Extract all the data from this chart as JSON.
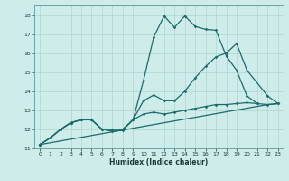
{
  "xlabel": "Humidex (Indice chaleur)",
  "bg_color": "#ceecea",
  "grid_color": "#aed4d0",
  "line_color": "#1a6b6b",
  "xlim": [
    -0.5,
    23.5
  ],
  "ylim": [
    11.0,
    18.5
  ],
  "yticks": [
    11,
    12,
    13,
    14,
    15,
    16,
    17,
    18
  ],
  "xticks": [
    0,
    1,
    2,
    3,
    4,
    5,
    6,
    7,
    8,
    9,
    10,
    11,
    12,
    13,
    14,
    15,
    16,
    17,
    18,
    19,
    20,
    21,
    22,
    23
  ],
  "line1_x": [
    0,
    1,
    2,
    3,
    4,
    5,
    6,
    7,
    8,
    9,
    10,
    11,
    12,
    13,
    14,
    15,
    16,
    17,
    18,
    19,
    20,
    21
  ],
  "line1_y": [
    11.2,
    11.55,
    12.0,
    12.35,
    12.5,
    12.5,
    12.0,
    11.9,
    11.95,
    12.5,
    14.55,
    16.85,
    17.95,
    17.35,
    17.95,
    17.4,
    17.25,
    17.2,
    15.85,
    15.1,
    13.75,
    13.35
  ],
  "line2_x": [
    0,
    1,
    2,
    3,
    4,
    5,
    6,
    7,
    8,
    9,
    10,
    11,
    12,
    13,
    14,
    15,
    16,
    17,
    18,
    19,
    20,
    22,
    23
  ],
  "line2_y": [
    11.2,
    11.55,
    12.0,
    12.35,
    12.5,
    12.5,
    12.0,
    12.0,
    12.0,
    12.5,
    13.5,
    13.8,
    13.5,
    13.5,
    14.0,
    14.7,
    15.3,
    15.8,
    16.0,
    16.5,
    15.1,
    13.75,
    13.35
  ],
  "line3_x": [
    0,
    22,
    23
  ],
  "line3_y": [
    11.2,
    13.3,
    13.35
  ],
  "line4_x": [
    0,
    1,
    2,
    3,
    4,
    5,
    6,
    7,
    8,
    9,
    10,
    11,
    12,
    13,
    14,
    15,
    16,
    17,
    18,
    19,
    20,
    21,
    22,
    23
  ],
  "line4_y": [
    11.2,
    11.55,
    12.0,
    12.35,
    12.5,
    12.5,
    12.0,
    12.0,
    12.0,
    12.5,
    12.8,
    12.9,
    12.8,
    12.9,
    13.0,
    13.1,
    13.2,
    13.3,
    13.3,
    13.35,
    13.4,
    13.35,
    13.3,
    13.35
  ]
}
